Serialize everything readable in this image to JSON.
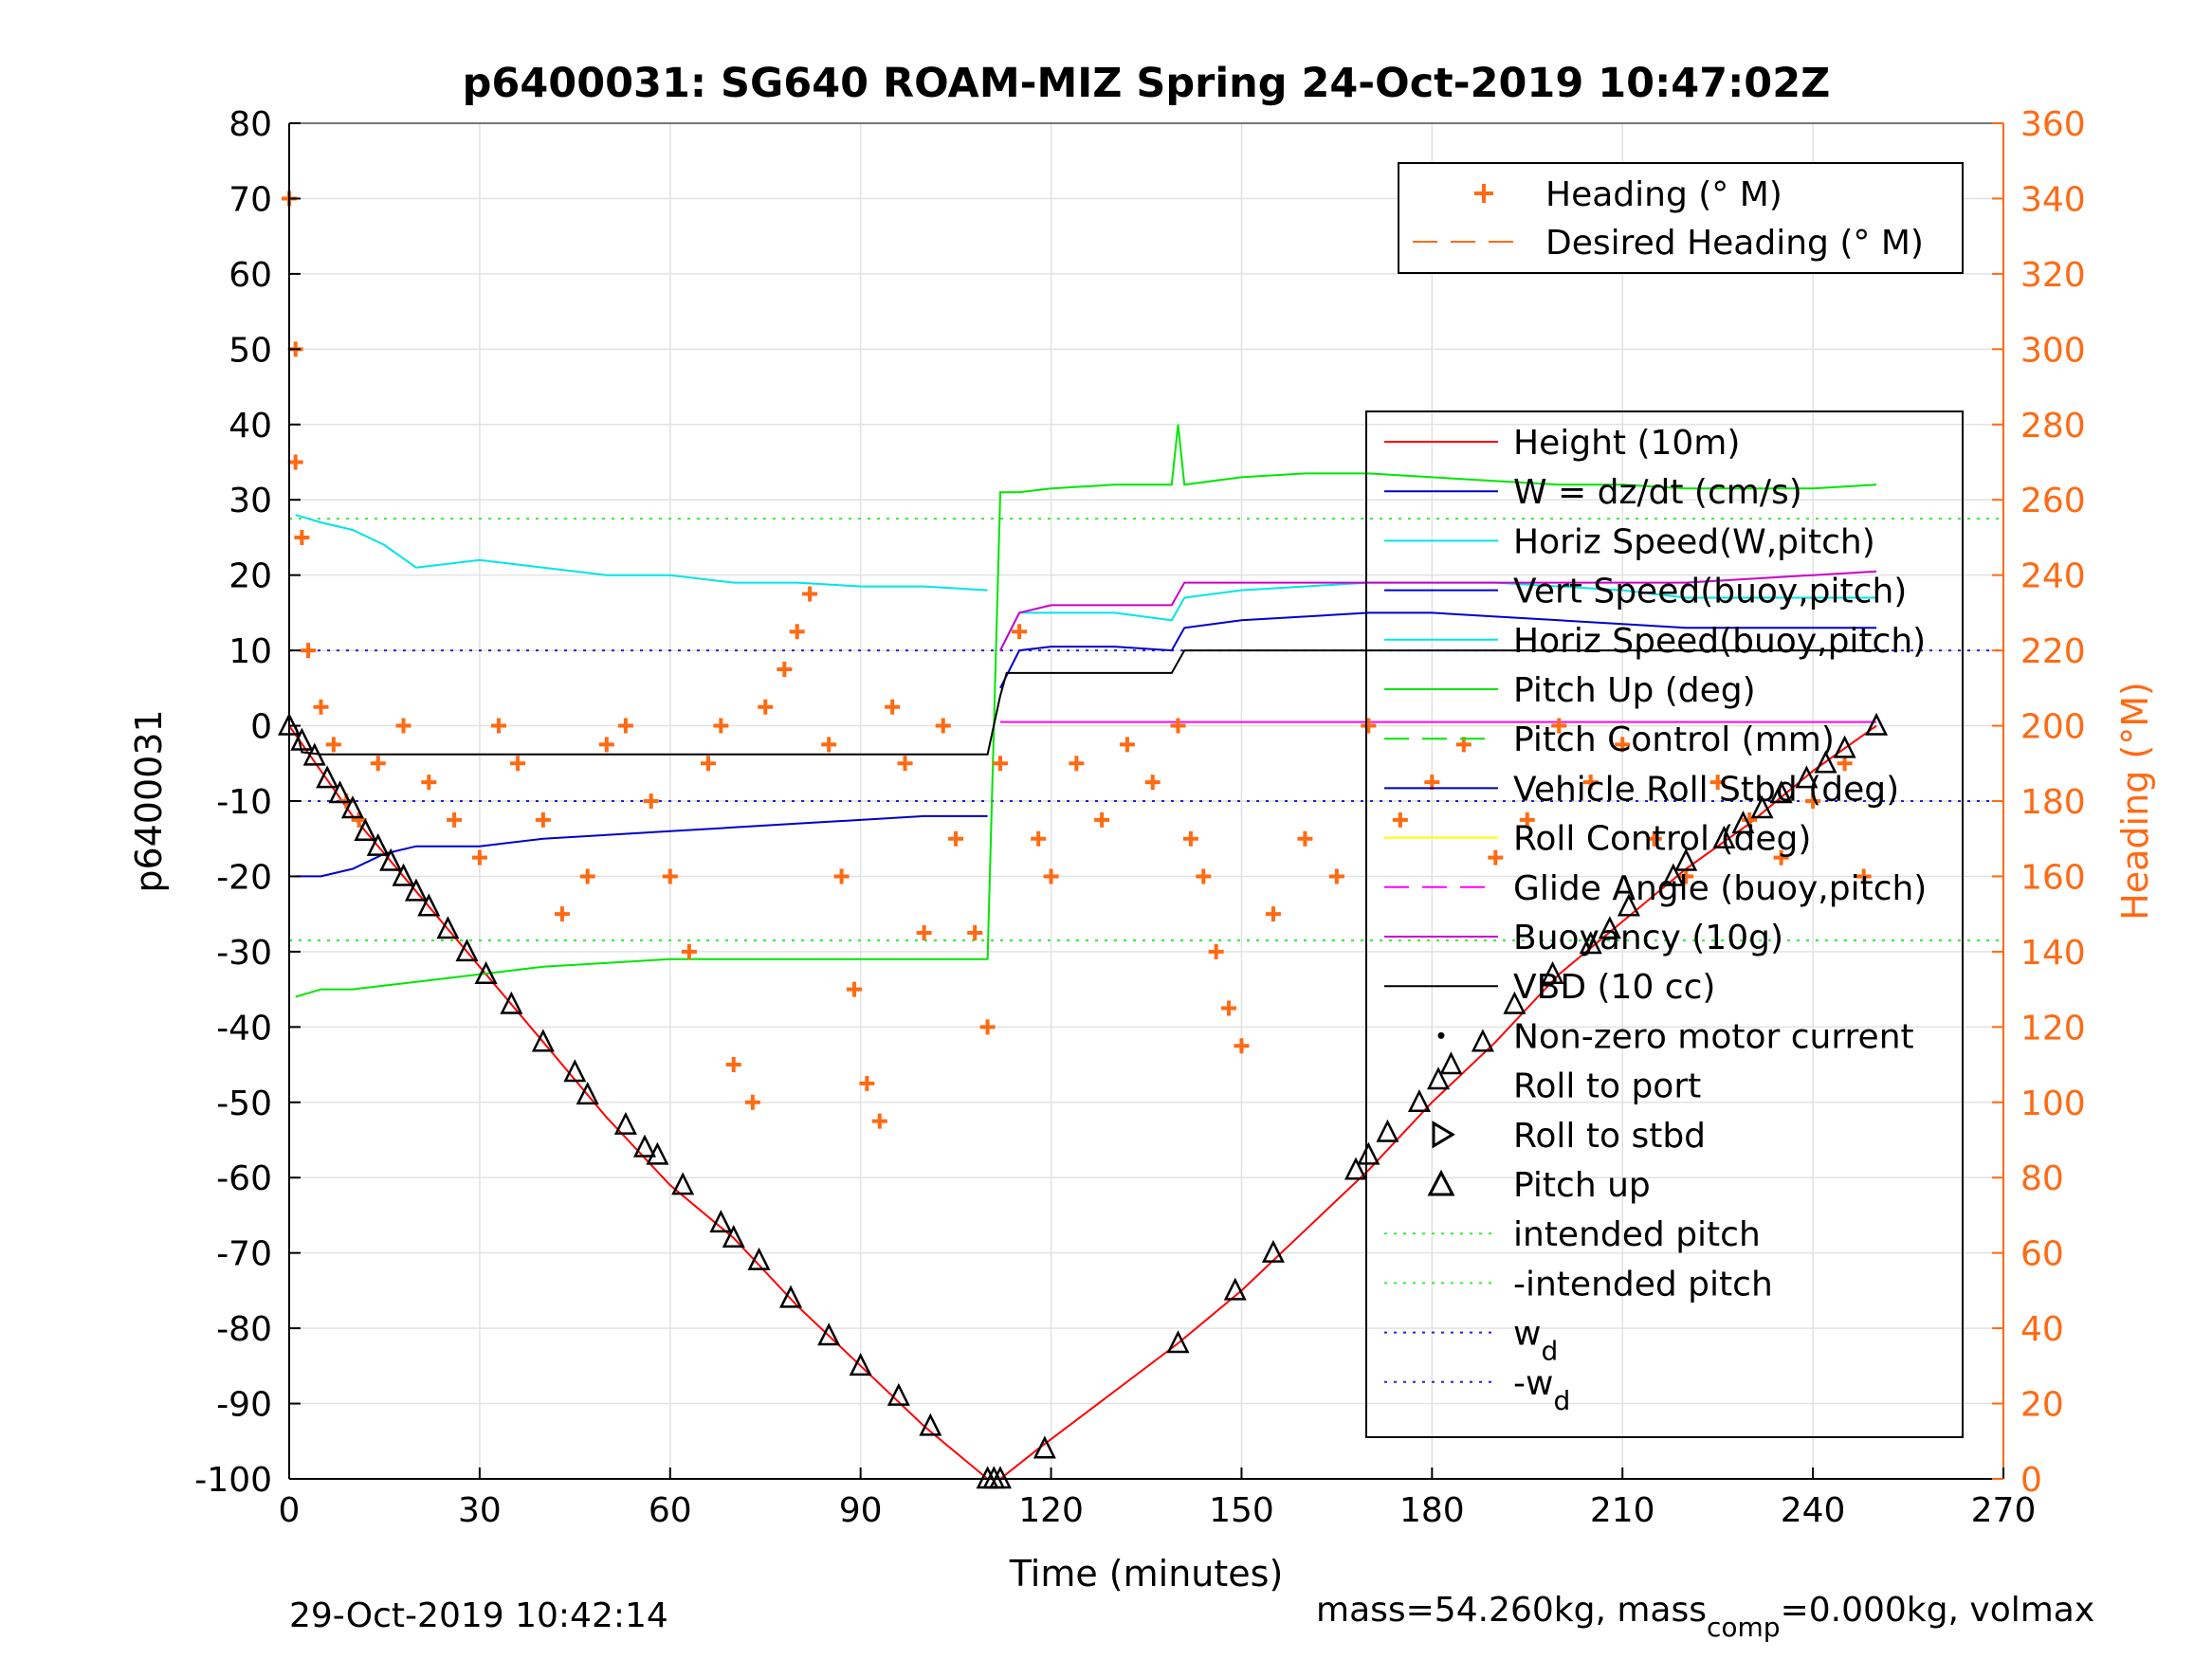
{
  "title": "p6400031: SG640 ROAM-MIZ Spring 24-Oct-2019 10:47:02Z",
  "footer": {
    "date": "29-Oct-2019 10:42:14",
    "mass_prefix": "mass=54.260kg, mass",
    "mass_sub": "comp",
    "mass_suffix": "=0.000kg, volmax"
  },
  "colors": {
    "heading": "#ff6a13",
    "height": "#ff0000",
    "w": "#0000cc",
    "horiz_w": "#00e5e5",
    "vert_buoy": "#0000cc",
    "horiz_buoy": "#00e5e5",
    "pitch": "#00e600",
    "pitch_control": "#00e600",
    "roll": "#0000aa",
    "roll_control": "#ffff00",
    "glide": "#ff00ff",
    "buoyancy": "#cc00cc",
    "vbd": "#000000",
    "intended": "#33ee33",
    "wd": "#2222dd"
  },
  "chart_data": {
    "type": "line",
    "title": "p6400031: SG640 ROAM-MIZ Spring 24-Oct-2019 10:47:02Z",
    "xlabel": "Time (minutes)",
    "ylabel": "p6400031",
    "y2label": "Heading (°M)",
    "xlim": [
      0,
      270
    ],
    "ylim": [
      -100,
      80
    ],
    "y2lim": [
      0,
      360
    ],
    "xticks": [
      "0",
      "30",
      "60",
      "90",
      "120",
      "150",
      "180",
      "210",
      "240",
      "270"
    ],
    "yticks": [
      "80",
      "70",
      "60",
      "50",
      "40",
      "30",
      "20",
      "10",
      "0",
      "-10",
      "-20",
      "-30",
      "-40",
      "-50",
      "-60",
      "-70",
      "-80",
      "-90",
      "-100"
    ],
    "y2ticks": [
      "360",
      "340",
      "320",
      "300",
      "280",
      "260",
      "240",
      "220",
      "200",
      "180",
      "160",
      "140",
      "120",
      "100",
      "80",
      "60",
      "40",
      "20",
      "0"
    ],
    "grid": true,
    "legend_top": {
      "placement": "top-right",
      "entries": [
        "Heading (° M)",
        "Desired Heading (° M)"
      ]
    },
    "legend_main": {
      "placement": "right",
      "entries": [
        "Height (10m)",
        "W = dz/dt (cm/s)",
        "Horiz Speed(W,pitch)",
        "Vert Speed(buoy,pitch)",
        "Horiz Speed(buoy,pitch)",
        "Pitch Up (deg)",
        "Pitch Control (mm)",
        "Vehicle Roll Stbd (deg)",
        "Roll Control (deg)",
        "Glide Angle (buoy,pitch)",
        "Buoyancy (10g)",
        "VBD (10 cc)",
        "Non-zero motor current",
        "Roll to port",
        "Roll to stbd",
        "Pitch up",
        "intended pitch",
        "-intended pitch",
        "w",
        "-w"
      ],
      "subscripts": {
        "18": "d",
        "19": "d"
      }
    },
    "reference_lines": {
      "intended_pitch": 27.5,
      "neg_intended_pitch": -28.5,
      "wd": 10,
      "neg_wd": -10
    },
    "series": [
      {
        "name": "Height (10m)",
        "x": [
          0,
          5,
          10,
          20,
          30,
          40,
          50,
          60,
          70,
          80,
          90,
          100,
          110,
          112,
          118,
          140,
          150,
          160,
          170,
          180,
          190,
          200,
          210,
          220,
          230,
          240,
          250
        ],
        "y": [
          0,
          -6,
          -12,
          -22,
          -32,
          -42,
          -52,
          -61,
          -68,
          -77,
          -85,
          -93,
          -100,
          -100,
          -96,
          -82,
          -75,
          -67,
          -59,
          -50,
          -42,
          -33,
          -26,
          -19,
          -13,
          -6,
          0
        ]
      },
      {
        "name": "W = dz/dt (cm/s)",
        "x": [
          1,
          5,
          10,
          15,
          20,
          30,
          40,
          50,
          60,
          70,
          80,
          90,
          100,
          110
        ],
        "y": [
          -20,
          -20,
          -19,
          -17,
          -16,
          -16,
          -15,
          -14.5,
          -14,
          -13.5,
          -13,
          -12.5,
          -12,
          -12
        ]
      },
      {
        "name": "Vert Speed(buoy,pitch)",
        "x": [
          112,
          115,
          120,
          130,
          139,
          141,
          150,
          160,
          170,
          180,
          190,
          200,
          210,
          220,
          230,
          240,
          250
        ],
        "y": [
          5,
          10,
          10.5,
          10.5,
          10,
          13,
          14,
          14.5,
          15,
          15,
          14.5,
          14,
          13.5,
          13,
          13,
          13,
          13
        ]
      },
      {
        "name": "Horiz Speed(W,pitch)",
        "x": [
          1,
          5,
          10,
          15,
          20,
          30,
          40,
          50,
          60,
          70,
          80,
          90,
          100,
          110
        ],
        "y": [
          28,
          27,
          26,
          24,
          21,
          22,
          21,
          20,
          20,
          19,
          19,
          18.5,
          18.5,
          18
        ]
      },
      {
        "name": "Horiz Speed(buoy,pitch)",
        "x": [
          112,
          115,
          120,
          130,
          139,
          141,
          150,
          160,
          170,
          180,
          190,
          200,
          210,
          220,
          230,
          240,
          250
        ],
        "y": [
          10,
          15,
          15,
          15,
          14,
          17,
          18,
          18.5,
          19,
          19,
          19,
          18.5,
          18,
          17,
          17,
          17,
          17
        ]
      },
      {
        "name": "Pitch Up (deg)",
        "x": [
          1,
          5,
          10,
          20,
          30,
          40,
          50,
          60,
          70,
          80,
          90,
          100,
          110,
          112,
          115,
          120,
          130,
          139,
          140,
          141,
          150,
          160,
          170,
          180,
          190,
          200,
          210,
          220,
          230,
          240,
          250
        ],
        "y": [
          -36,
          -35,
          -35,
          -34,
          -33,
          -32,
          -31.5,
          -31,
          -31,
          -31,
          -31,
          -31,
          -31,
          31,
          31,
          31.5,
          32,
          32,
          40,
          32,
          33,
          33.5,
          33.5,
          33,
          32.5,
          32,
          32,
          31.5,
          31.5,
          31.5,
          32
        ]
      },
      {
        "name": "Glide Angle (buoy,pitch)",
        "x": [
          112,
          150,
          200,
          250
        ],
        "y": [
          0.5,
          0.5,
          0.5,
          0.5
        ]
      },
      {
        "name": "Buoyancy (10g)",
        "x": [
          112,
          115,
          120,
          130,
          139,
          141,
          150,
          160,
          170,
          180,
          190,
          200,
          210,
          220,
          230,
          240,
          250
        ],
        "y": [
          10,
          15,
          16,
          16,
          16,
          19,
          19,
          19,
          19,
          19,
          19,
          19,
          19,
          19,
          19.5,
          20,
          20.5
        ]
      },
      {
        "name": "VBD (10 cc)",
        "x": [
          1,
          2,
          5,
          30,
          60,
          90,
          110,
          112,
          113,
          120,
          130,
          139,
          141,
          150,
          180,
          210,
          240,
          250
        ],
        "y": [
          0,
          -3.5,
          -3.8,
          -3.8,
          -3.8,
          -3.8,
          -3.8,
          4,
          7,
          7,
          7,
          7,
          10,
          10,
          10,
          10,
          10,
          10
        ]
      }
    ],
    "heading_points": {
      "x": [
        0,
        1,
        1,
        2,
        3,
        5,
        7,
        9,
        11,
        14,
        18,
        22,
        26,
        30,
        33,
        36,
        40,
        43,
        47,
        50,
        53,
        57,
        60,
        63,
        66,
        68,
        70,
        73,
        75,
        78,
        80,
        82,
        85,
        87,
        89,
        91,
        93,
        95,
        97,
        100,
        103,
        105,
        108,
        110,
        112,
        115,
        118,
        120,
        124,
        128,
        132,
        136,
        140,
        142,
        144,
        146,
        148,
        150,
        155,
        160,
        165,
        170,
        175,
        180,
        185,
        190,
        195,
        200,
        205,
        210,
        215,
        220,
        225,
        230,
        235,
        240,
        245,
        248
      ],
      "y": [
        340,
        300,
        270,
        250,
        220,
        205,
        195,
        180,
        175,
        190,
        200,
        185,
        175,
        165,
        200,
        190,
        175,
        150,
        160,
        195,
        200,
        180,
        160,
        140,
        190,
        200,
        110,
        100,
        205,
        215,
        225,
        235,
        195,
        160,
        130,
        105,
        95,
        205,
        190,
        145,
        200,
        170,
        145,
        120,
        190,
        225,
        170,
        160,
        190,
        175,
        195,
        185,
        200,
        170,
        160,
        140,
        125,
        115,
        150,
        170,
        160,
        200,
        175,
        185,
        195,
        165,
        175,
        200,
        185,
        195,
        170,
        160,
        185,
        175,
        165,
        180,
        190,
        160
      ]
    },
    "markers": {
      "x": [
        0,
        2,
        4,
        6,
        8,
        10,
        12,
        14,
        16,
        18,
        20,
        22,
        25,
        28,
        31,
        35,
        40,
        45,
        47,
        53,
        56,
        58,
        62,
        68,
        70,
        74,
        79,
        85,
        90,
        96,
        101,
        110,
        111,
        112,
        119,
        140,
        149,
        155,
        168,
        170,
        173,
        178,
        181,
        183,
        188,
        193,
        199,
        205,
        208,
        211,
        218,
        220,
        226,
        229,
        232,
        235,
        239,
        242,
        245,
        250
      ],
      "y": [
        0,
        -2,
        -4,
        -7,
        -9,
        -11,
        -14,
        -16,
        -18,
        -20,
        -22,
        -24,
        -27,
        -30,
        -33,
        -37,
        -42,
        -46,
        -49,
        -53,
        -56,
        -57,
        -61,
        -66,
        -68,
        -71,
        -76,
        -81,
        -85,
        -89,
        -93,
        -100,
        -100,
        -100,
        -96,
        -82,
        -75,
        -70,
        -59,
        -57,
        -54,
        -50,
        -47,
        -45,
        -42,
        -37,
        -33,
        -29,
        -27,
        -24,
        -20,
        -18,
        -15,
        -13,
        -11,
        -9,
        -7,
        -5,
        -3,
        0
      ]
    }
  }
}
